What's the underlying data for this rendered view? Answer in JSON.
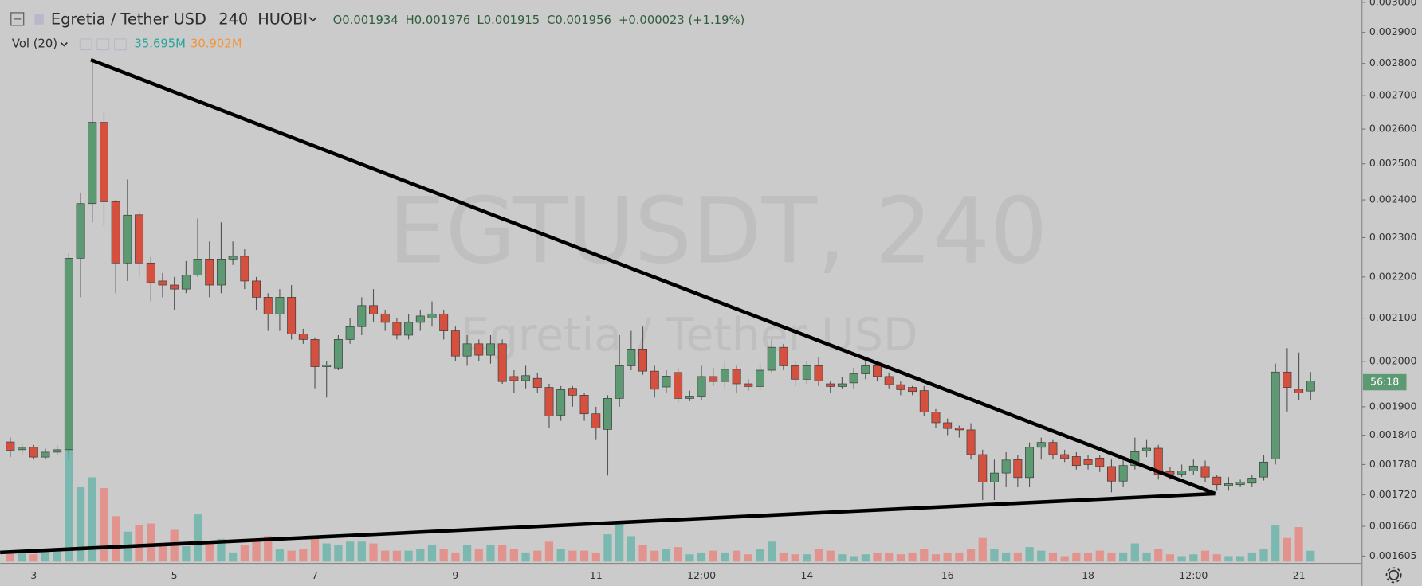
{
  "chart_data": {
    "type": "candlestick",
    "title": "Egretia / Tether USD",
    "interval": "240",
    "exchange": "HUOBI",
    "ohlc_legend": [
      "O0.001934",
      "H0.001976",
      "L0.001915",
      "C0.001956",
      "+0.000023 (+1.19%)"
    ],
    "volume_legend": {
      "label": "Vol (20)",
      "values": [
        "35.695M",
        "30.902M"
      ]
    },
    "watermark": {
      "symbol": "EGTUSDT, 240",
      "name": "Egretia / Tether USD"
    },
    "countdown": "56:18",
    "categories": [
      null,
      null,
      "3",
      null,
      null,
      null,
      null,
      null,
      null,
      null,
      null,
      null,
      null,
      null,
      "5",
      null,
      null,
      null,
      null,
      null,
      null,
      null,
      null,
      null,
      null,
      null,
      "7",
      null,
      null,
      null,
      null,
      null,
      null,
      null,
      null,
      null,
      null,
      null,
      "9",
      null,
      null,
      null,
      null,
      null,
      null,
      null,
      null,
      null,
      null,
      null,
      "11",
      null,
      null,
      null,
      null,
      null,
      null,
      null,
      null,
      "12:00",
      null,
      null,
      null,
      null,
      null,
      null,
      null,
      null,
      "14",
      null,
      null,
      null,
      null,
      null,
      null,
      null,
      null,
      null,
      null,
      null,
      "16",
      null,
      null,
      null,
      null,
      null,
      null,
      null,
      null,
      null,
      null,
      null,
      "18",
      null,
      null,
      null,
      null,
      null,
      null,
      null,
      null,
      "12:00",
      null,
      null,
      null,
      null,
      null,
      null,
      null,
      null,
      "21",
      null
    ],
    "open": [
      0.001826,
      0.00181,
      0.001815,
      0.001795,
      0.001805,
      0.00181,
      0.002247,
      0.00239,
      0.00262,
      0.002395,
      0.002235,
      0.00236,
      0.002235,
      0.00219,
      0.00218,
      0.00217,
      0.002205,
      0.002245,
      0.00218,
      0.002245,
      0.002252,
      0.00219,
      0.00215,
      0.00211,
      0.00215,
      0.002063,
      0.00205,
      0.001988,
      0.001985,
      0.00205,
      0.00208,
      0.00213,
      0.00211,
      0.00209,
      0.00206,
      0.00209,
      0.0021,
      0.00211,
      0.00207,
      0.002012,
      0.00204,
      0.002014,
      0.00204,
      0.001966,
      0.001957,
      0.001962,
      0.001942,
      0.001882,
      0.00194,
      0.001925,
      0.001885,
      0.001852,
      0.001918,
      0.00199,
      0.002028,
      0.001978,
      0.001943,
      0.001975,
      0.001918,
      0.001923,
      0.001966,
      0.001955,
      0.001982,
      0.00195,
      0.001944,
      0.00198,
      0.002032,
      0.00199,
      0.00196,
      0.00199,
      0.00195,
      0.001944,
      0.001952,
      0.001972,
      0.00199,
      0.001966,
      0.001948,
      0.001942,
      0.001935,
      0.001889,
      0.001866,
      0.001855,
      0.001851,
      0.0018,
      0.001745,
      0.001763,
      0.00179,
      0.001754,
      0.001815,
      0.001825,
      0.0018,
      0.001796,
      0.00179,
      0.001793,
      0.001776,
      0.001747,
      0.001778,
      0.001808,
      0.001813,
      0.001766,
      0.001761,
      0.001767,
      0.001776,
      0.001755,
      0.001738,
      0.00174,
      0.001743,
      0.001755,
      0.001791,
      0.001976,
      0.001938,
      0.001934
    ],
    "high": [
      0.001835,
      0.001822,
      0.00182,
      0.001812,
      0.001818,
      0.00226,
      0.00242,
      0.002815,
      0.00265,
      0.0024,
      0.002456,
      0.00237,
      0.00225,
      0.00221,
      0.0022,
      0.00224,
      0.00235,
      0.00229,
      0.00234,
      0.00229,
      0.00227,
      0.0022,
      0.00216,
      0.00217,
      0.00218,
      0.002075,
      0.002055,
      0.002,
      0.00206,
      0.0021,
      0.00215,
      0.00217,
      0.00212,
      0.0021,
      0.00211,
      0.00212,
      0.00214,
      0.00212,
      0.00208,
      0.00206,
      0.00205,
      0.00206,
      0.00205,
      0.00198,
      0.00199,
      0.001975,
      0.00195,
      0.001945,
      0.001945,
      0.00193,
      0.0019,
      0.001925,
      0.00206,
      0.00207,
      0.00208,
      0.00199,
      0.00198,
      0.001985,
      0.001935,
      0.00199,
      0.001985,
      0.002,
      0.00199,
      0.00196,
      0.001995,
      0.00205,
      0.00204,
      0.002,
      0.002,
      0.00201,
      0.001955,
      0.001965,
      0.001985,
      0.002,
      0.001995,
      0.001975,
      0.001955,
      0.001945,
      0.001945,
      0.001895,
      0.001875,
      0.00186,
      0.001865,
      0.00181,
      0.00179,
      0.001805,
      0.0018,
      0.001825,
      0.001835,
      0.00183,
      0.00181,
      0.001805,
      0.0018,
      0.0018,
      0.00179,
      0.00179,
      0.001835,
      0.00183,
      0.00182,
      0.001775,
      0.00178,
      0.00179,
      0.001788,
      0.00176,
      0.001755,
      0.00175,
      0.00176,
      0.0018,
      0.001995,
      0.00203,
      0.00202,
      0.001976
    ],
    "low": [
      0.001795,
      0.0018,
      0.00179,
      0.00179,
      0.0018,
      0.00179,
      0.00215,
      0.00234,
      0.00233,
      0.00216,
      0.00219,
      0.0022,
      0.00214,
      0.00215,
      0.00212,
      0.00216,
      0.0022,
      0.00215,
      0.00216,
      0.00223,
      0.00217,
      0.00212,
      0.00207,
      0.00207,
      0.00205,
      0.00204,
      0.00194,
      0.00192,
      0.00198,
      0.00204,
      0.00206,
      0.00209,
      0.00207,
      0.00205,
      0.00205,
      0.00207,
      0.00208,
      0.00205,
      0.002,
      0.00199,
      0.002,
      0.001995,
      0.00195,
      0.00193,
      0.00194,
      0.00193,
      0.001855,
      0.00187,
      0.0019,
      0.00187,
      0.00183,
      0.001758,
      0.0019,
      0.00198,
      0.00197,
      0.00192,
      0.00193,
      0.00191,
      0.001912,
      0.001915,
      0.001945,
      0.00194,
      0.00193,
      0.001935,
      0.001935,
      0.001975,
      0.00198,
      0.001945,
      0.00195,
      0.001945,
      0.00193,
      0.00194,
      0.00194,
      0.00196,
      0.001955,
      0.00194,
      0.001925,
      0.001925,
      0.00188,
      0.001855,
      0.00184,
      0.001835,
      0.00179,
      0.00171,
      0.00171,
      0.001735,
      0.001735,
      0.001735,
      0.00179,
      0.00179,
      0.001785,
      0.00177,
      0.00177,
      0.001765,
      0.001725,
      0.001735,
      0.00177,
      0.001795,
      0.00175,
      0.00175,
      0.001755,
      0.00176,
      0.001745,
      0.001728,
      0.001728,
      0.001735,
      0.001735,
      0.001748,
      0.00178,
      0.00189,
      0.001915,
      0.001915
    ],
    "close": [
      0.001809,
      0.001815,
      0.001795,
      0.001805,
      0.00181,
      0.002247,
      0.00239,
      0.00262,
      0.002395,
      0.002235,
      0.002359,
      0.002235,
      0.002186,
      0.00218,
      0.00217,
      0.002205,
      0.002245,
      0.00218,
      0.002245,
      0.002252,
      0.00219,
      0.00215,
      0.00211,
      0.00215,
      0.002063,
      0.00205,
      0.001988,
      0.001992,
      0.00205,
      0.00208,
      0.00213,
      0.00211,
      0.00209,
      0.00206,
      0.00209,
      0.002105,
      0.00211,
      0.00207,
      0.002012,
      0.00204,
      0.002014,
      0.00204,
      0.001955,
      0.001957,
      0.001968,
      0.001942,
      0.00188,
      0.001937,
      0.001925,
      0.001885,
      0.001855,
      0.001918,
      0.00199,
      0.002028,
      0.001978,
      0.001938,
      0.001967,
      0.001918,
      0.001923,
      0.001966,
      0.001955,
      0.001982,
      0.00195,
      0.001944,
      0.00198,
      0.002032,
      0.00199,
      0.00196,
      0.00199,
      0.001956,
      0.001944,
      0.00195,
      0.001972,
      0.00199,
      0.001966,
      0.001948,
      0.001937,
      0.001933,
      0.001889,
      0.001866,
      0.001854,
      0.001851,
      0.0018,
      0.001745,
      0.001763,
      0.001789,
      0.001754,
      0.001815,
      0.001825,
      0.0018,
      0.001792,
      0.001778,
      0.00178,
      0.001776,
      0.001747,
      0.001778,
      0.001806,
      0.001813,
      0.00176,
      0.001761,
      0.001767,
      0.001777,
      0.001755,
      0.00174,
      0.001742,
      0.001745,
      0.001753,
      0.001785,
      0.001976,
      0.001942,
      0.00193,
      0.001956
    ],
    "volume": [
      36,
      30,
      24,
      36,
      42,
      465,
      246,
      279,
      243,
      150,
      99,
      120,
      126,
      60,
      105,
      51,
      156,
      60,
      75,
      30,
      54,
      66,
      84,
      42,
      36,
      42,
      84,
      60,
      54,
      66,
      66,
      60,
      36,
      36,
      36,
      42,
      54,
      42,
      30,
      54,
      42,
      54,
      54,
      42,
      30,
      36,
      66,
      42,
      36,
      36,
      30,
      90,
      126,
      84,
      54,
      36,
      42,
      48,
      24,
      30,
      36,
      30,
      36,
      24,
      42,
      66,
      30,
      24,
      24,
      42,
      36,
      24,
      18,
      24,
      30,
      30,
      24,
      30,
      42,
      24,
      30,
      30,
      42,
      78,
      42,
      30,
      30,
      48,
      36,
      30,
      18,
      30,
      30,
      36,
      30,
      30,
      60,
      30,
      42,
      24,
      18,
      24,
      36,
      24,
      18,
      18,
      30,
      42,
      120,
      78,
      114,
      35.695
    ],
    "vlim": [
      0,
      480
    ],
    "ylim": [
      0.001592,
      0.003008
    ],
    "log_scale": true,
    "yticks": [
      {
        "value": 0.003,
        "label": "0.003000"
      },
      {
        "value": 0.0029,
        "label": "0.002900"
      },
      {
        "value": 0.0028,
        "label": "0.002800"
      },
      {
        "value": 0.0027,
        "label": "0.002700"
      },
      {
        "value": 0.0026,
        "label": "0.002600"
      },
      {
        "value": 0.0025,
        "label": "0.002500"
      },
      {
        "value": 0.0024,
        "label": "0.002400"
      },
      {
        "value": 0.0023,
        "label": "0.002300"
      },
      {
        "value": 0.0022,
        "label": "0.002200"
      },
      {
        "value": 0.0021,
        "label": "0.002100"
      },
      {
        "value": 0.002,
        "label": "0.002000"
      },
      {
        "value": 0.0019,
        "label": "0.001900"
      },
      {
        "value": 0.00184,
        "label": "0.001840"
      },
      {
        "value": 0.00178,
        "label": "0.001780"
      },
      {
        "value": 0.00172,
        "label": "0.001720"
      },
      {
        "value": 0.00166,
        "label": "0.001660"
      },
      {
        "value": 0.001605,
        "label": "0.001605"
      }
    ],
    "up_color": "#5d9a73",
    "down_color": "#d6503f",
    "volume_up_color": "#7bb8af",
    "volume_down_color": "#e2938d"
  }
}
